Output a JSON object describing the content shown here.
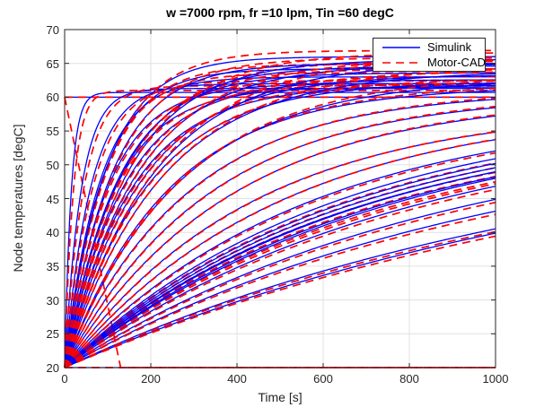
{
  "chart_data": {
    "type": "line",
    "title": "w =7000 rpm, fr =10 lpm, Tin =60 degC",
    "xlabel": "Time [s]",
    "ylabel": "Node temperatures [degC]",
    "xlim": [
      0,
      1000
    ],
    "ylim": [
      20,
      70
    ],
    "xticks": [
      0,
      200,
      400,
      600,
      800,
      1000
    ],
    "yticks": [
      20,
      25,
      30,
      35,
      40,
      45,
      50,
      55,
      60,
      65,
      70
    ],
    "grid": true,
    "colors": {
      "simulink": "#0000FF",
      "motorcad": "#FF0000",
      "grid": "#E0E0E0",
      "axis": "#262626"
    },
    "legend": {
      "position": "northeast",
      "entries": [
        {
          "label": "Simulink",
          "color": "#0000FF",
          "style": "solid"
        },
        {
          "label": "Motor-CAD",
          "color": "#FF0000",
          "style": "dashed"
        }
      ]
    },
    "model": "first-order estimates read from figure: T(t)=Tf-(Tf-T0)*exp(-t/tau), T0=20 degC unless noted",
    "series": [
      {
        "name": "coolant-inlet-60degC",
        "sim": {
          "const": 60
        },
        "mcad": {
          "const": 60
        }
      },
      {
        "name": "ambient-20degC",
        "sim": {
          "const": 20
        },
        "mcad": {
          "const": 20
        }
      },
      {
        "name": "mcad-startup-transient",
        "mcad": {
          "pts": [
            [
              0,
              60
            ],
            [
              130,
              20
            ],
            [
              1000,
              20
            ]
          ]
        }
      },
      {
        "name": "node-01",
        "sim": {
          "tau": 15,
          "Tf": 60.7
        },
        "mcad": {
          "tau": 20,
          "Tf": 61.0
        }
      },
      {
        "name": "node-02",
        "sim": {
          "tau": 38,
          "Tf": 61.3
        },
        "mcad": {
          "tau": 44,
          "Tf": 61.7
        }
      },
      {
        "name": "node-03",
        "sim": {
          "tau": 60,
          "Tf": 62.0
        },
        "mcad": {
          "tau": 66,
          "Tf": 62.4
        }
      },
      {
        "name": "node-04",
        "sim": {
          "tau": 80,
          "Tf": 63.0
        },
        "mcad": {
          "tau": 86,
          "Tf": 63.6
        }
      },
      {
        "name": "node-05",
        "sim": {
          "tau": 88,
          "Tf": 64.2
        },
        "mcad": {
          "tau": 94,
          "Tf": 64.9
        }
      },
      {
        "name": "node-06",
        "sim": {
          "tau": 95,
          "Tf": 66.0
        },
        "mcad": {
          "tau": 101,
          "Tf": 66.9
        }
      },
      {
        "name": "node-07",
        "sim": {
          "tau": 100,
          "Tf": 62.0
        },
        "mcad": {
          "tau": 106,
          "Tf": 62.5
        }
      },
      {
        "name": "node-08",
        "sim": {
          "tau": 108,
          "Tf": 65.0
        },
        "mcad": {
          "tau": 114,
          "Tf": 65.8
        }
      },
      {
        "name": "node-09",
        "sim": {
          "tau": 115,
          "Tf": 61.5
        },
        "mcad": {
          "tau": 121,
          "Tf": 61.9
        }
      },
      {
        "name": "node-10",
        "sim": {
          "tau": 122,
          "Tf": 63.6
        },
        "mcad": {
          "tau": 128,
          "Tf": 64.2
        }
      },
      {
        "name": "node-11",
        "sim": {
          "tau": 130,
          "Tf": 64.6
        },
        "mcad": {
          "tau": 136,
          "Tf": 65.3
        }
      },
      {
        "name": "node-12",
        "sim": {
          "tau": 138,
          "Tf": 62.6
        },
        "mcad": {
          "tau": 144,
          "Tf": 63.1
        }
      },
      {
        "name": "node-13",
        "sim": {
          "tau": 146,
          "Tf": 65.6
        },
        "mcad": {
          "tau": 152,
          "Tf": 66.6
        }
      },
      {
        "name": "node-14",
        "sim": {
          "tau": 155,
          "Tf": 61.8
        },
        "mcad": {
          "tau": 161,
          "Tf": 62.2
        }
      },
      {
        "name": "node-15",
        "sim": {
          "tau": 165,
          "Tf": 64.9
        },
        "mcad": {
          "tau": 171,
          "Tf": 65.6
        }
      },
      {
        "name": "node-16",
        "sim": {
          "tau": 175,
          "Tf": 63.3
        },
        "mcad": {
          "tau": 181,
          "Tf": 63.9
        }
      },
      {
        "name": "node-17",
        "sim": {
          "tau": 190,
          "Tf": 62.3
        },
        "mcad": {
          "tau": 196,
          "Tf": 62.8
        }
      },
      {
        "name": "node-18",
        "sim": {
          "tau": 205,
          "Tf": 65.3
        },
        "mcad": {
          "tau": 211,
          "Tf": 66.3
        }
      },
      {
        "name": "node-19",
        "sim": {
          "tau": 220,
          "Tf": 63.9
        },
        "mcad": {
          "tau": 226,
          "Tf": 64.6
        }
      },
      {
        "name": "node-20",
        "sim": {
          "tau": 240,
          "Tf": 61.6
        },
        "mcad": {
          "tau": 246,
          "Tf": 62.0
        }
      },
      {
        "name": "node-21",
        "sim": {
          "tau": 260,
          "Tf": 62.9
        },
        "mcad": {
          "tau": 266,
          "Tf": 63.5
        }
      },
      {
        "name": "node-22",
        "sim": {
          "tau": 285,
          "Tf": 60.9
        },
        "mcad": {
          "tau": 291,
          "Tf": 61.2
        }
      },
      {
        "name": "node-23",
        "sim": {
          "tau": 330,
          "Tf": 60.4
        },
        "mcad": {
          "tau": 336,
          "Tf": 60.7
        }
      },
      {
        "name": "node-24",
        "sim": {
          "tau": 380,
          "Tf": 60.1
        },
        "mcad": {
          "tau": 386,
          "Tf": 60.4
        }
      },
      {
        "name": "node-25",
        "sim": {
          "tau": 430,
          "Tf": 58.6
        },
        "mcad": {
          "tau": 436,
          "Tf": 58.8
        }
      },
      {
        "name": "node-26",
        "sim": {
          "tau": 500,
          "Tf": 59.0
        },
        "mcad": {
          "tau": 506,
          "Tf": 59.2
        }
      },
      {
        "name": "node-27",
        "sim": {
          "tau": 560,
          "Tf": 58.5
        },
        "mcad": {
          "tau": 566,
          "Tf": 58.3
        }
      },
      {
        "name": "node-28",
        "sim": {
          "tau": 620,
          "Tf": 58.6
        },
        "mcad": {
          "tau": 628,
          "Tf": 58.0
        }
      },
      {
        "name": "node-29",
        "sim": {
          "tau": 640,
          "Tf": 58.2
        },
        "mcad": {
          "tau": 648,
          "Tf": 57.6
        }
      },
      {
        "name": "node-30",
        "sim": {
          "tau": 660,
          "Tf": 57.9
        },
        "mcad": {
          "tau": 668,
          "Tf": 57.2
        }
      },
      {
        "name": "node-31",
        "sim": {
          "tau": 680,
          "Tf": 57.6
        },
        "mcad": {
          "tau": 688,
          "Tf": 56.9
        }
      },
      {
        "name": "node-32",
        "sim": {
          "tau": 700,
          "Tf": 58.1
        },
        "mcad": {
          "tau": 708,
          "Tf": 57.3
        }
      },
      {
        "name": "node-33",
        "sim": {
          "tau": 720,
          "Tf": 57.6
        },
        "mcad": {
          "tau": 728,
          "Tf": 56.8
        }
      },
      {
        "name": "node-34",
        "sim": {
          "tau": 745,
          "Tf": 57.9
        },
        "mcad": {
          "tau": 753,
          "Tf": 57.0
        }
      },
      {
        "name": "node-35",
        "sim": {
          "tau": 800,
          "Tf": 57.6
        },
        "mcad": {
          "tau": 808,
          "Tf": 57.1
        }
      },
      {
        "name": "node-36",
        "sim": {
          "tau": 900,
          "Tf": 57.1
        },
        "mcad": {
          "tau": 908,
          "Tf": 56.6
        }
      },
      {
        "name": "node-37",
        "sim": {
          "tau": 1000,
          "Tf": 56.6
        },
        "mcad": {
          "tau": 1008,
          "Tf": 56.0
        }
      },
      {
        "name": "node-38",
        "sim": {
          "tau": 1200,
          "Tf": 56.3
        },
        "mcad": {
          "tau": 1208,
          "Tf": 55.7
        }
      },
      {
        "name": "node-39",
        "sim": {
          "tau": 1350,
          "Tf": 58.0
        },
        "mcad": {
          "tau": 1358,
          "Tf": 57.3
        }
      }
    ]
  }
}
